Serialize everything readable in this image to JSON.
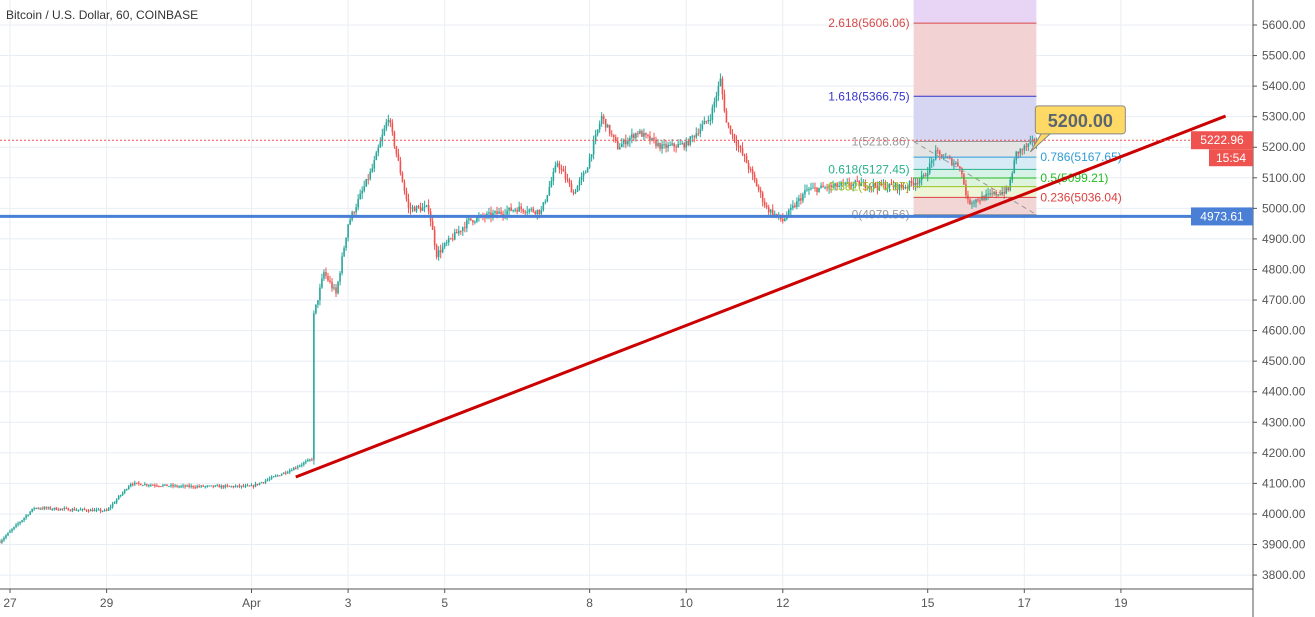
{
  "header": {
    "title": "Bitcoin / U.S. Dollar, 60, COINBASE"
  },
  "colors": {
    "up": "#26a69a",
    "down": "#ef5350",
    "trendline": "#cc0000",
    "support": "#4a7fd6",
    "price_label": "#ef5350",
    "callout": "#ffd966"
  },
  "chart_data": {
    "type": "candlestick",
    "title": "Bitcoin / U.S. Dollar, 60, COINBASE",
    "interval": "60",
    "x_ticks": [
      {
        "label": "27",
        "date": "Mar 27 00:00"
      },
      {
        "label": "29",
        "date": "Mar 29 00:00"
      },
      {
        "label": "Apr",
        "date": "Apr 1 00:00"
      },
      {
        "label": "3",
        "date": "Apr 3 00:00"
      },
      {
        "label": "5",
        "date": "Apr 5 00:00"
      },
      {
        "label": "8",
        "date": "Apr 8 00:00"
      },
      {
        "label": "10",
        "date": "Apr 10 00:00"
      },
      {
        "label": "12",
        "date": "Apr 12 00:00"
      },
      {
        "label": "15",
        "date": "Apr 15 00:00"
      },
      {
        "label": "17",
        "date": "Apr 17 00:00"
      },
      {
        "label": "19",
        "date": "Apr 19 00:00"
      }
    ],
    "y_ticks": [
      "3800.00",
      "3900.00",
      "4000.00",
      "4100.00",
      "4200.00",
      "4300.00",
      "4400.00",
      "4500.00",
      "4600.00",
      "4700.00",
      "4800.00",
      "4900.00",
      "5000.00",
      "5100.00",
      "5200.00",
      "5300.00",
      "5400.00",
      "5500.00",
      "5600.00"
    ],
    "ylim": [
      3750,
      5680
    ],
    "xlim": [
      "Mar 26 19:00",
      "Apr 22 22:00"
    ],
    "grid": true,
    "price_path": [
      [
        "Mar 26 19:00",
        3910
      ],
      [
        "Mar 27 12:00",
        4020
      ],
      [
        "Mar 29 00:00",
        4010
      ],
      [
        "Mar 29 12:00",
        4100
      ],
      [
        "Mar 30 12:00",
        4090
      ],
      [
        "Apr 1 00:00",
        4090
      ],
      [
        "Apr 1 18:00",
        4140
      ],
      [
        "Apr 2 06:00",
        4180
      ],
      [
        "Apr 2 07:00",
        4650
      ],
      [
        "Apr 2 12:00",
        4790
      ],
      [
        "Apr 2 18:00",
        4720
      ],
      [
        "Apr 3 00:00",
        4950
      ],
      [
        "Apr 3 12:00",
        5130
      ],
      [
        "Apr 3 20:00",
        5300
      ],
      [
        "Apr 4 06:00",
        5000
      ],
      [
        "Apr 4 16:00",
        5000
      ],
      [
        "Apr 4 20:00",
        4850
      ],
      [
        "Apr 5 12:00",
        4960
      ],
      [
        "Apr 6 12:00",
        5000
      ],
      [
        "Apr 7 00:00",
        4990
      ],
      [
        "Apr 7 08:00",
        5150
      ],
      [
        "Apr 7 16:00",
        5050
      ],
      [
        "Apr 7 22:00",
        5120
      ],
      [
        "Apr 8 06:00",
        5300
      ],
      [
        "Apr 8 14:00",
        5200
      ],
      [
        "Apr 9 00:00",
        5250
      ],
      [
        "Apr 9 12:00",
        5200
      ],
      [
        "Apr 10 00:00",
        5210
      ],
      [
        "Apr 10 12:00",
        5300
      ],
      [
        "Apr 10 17:00",
        5420
      ],
      [
        "Apr 10 20:00",
        5280
      ],
      [
        "Apr 11 06:00",
        5150
      ],
      [
        "Apr 11 16:00",
        5000
      ],
      [
        "Apr 12 00:00",
        4960
      ],
      [
        "Apr 12 12:00",
        5060
      ],
      [
        "Apr 13 12:00",
        5080
      ],
      [
        "Apr 14 12:00",
        5070
      ],
      [
        "Apr 14 22:00",
        5100
      ],
      [
        "Apr 15 04:00",
        5180
      ],
      [
        "Apr 15 16:00",
        5140
      ],
      [
        "Apr 15 20:00",
        5020
      ],
      [
        "Apr 16 06:00",
        5040
      ],
      [
        "Apr 16 16:00",
        5060
      ],
      [
        "Apr 16 20:00",
        5180
      ],
      [
        "Apr 17 06:00",
        5222.96
      ]
    ],
    "last_price": "5222.96",
    "countdown": "15:54",
    "support_level": {
      "price": 4973.61,
      "label": "4973.61"
    },
    "trendline": {
      "from": [
        "Apr 1 22:00",
        4121
      ],
      "to": [
        "Apr 21 04:00",
        5302
      ]
    },
    "callout": {
      "label": "5200.00",
      "date": "Apr 17 03:00",
      "price": 5185
    },
    "fibonacci": {
      "from": "Apr 14 17:00",
      "to": "Apr 17 06:00",
      "levels": [
        {
          "label": "2.618(5606.06)",
          "ratio": 2.618,
          "price": 5606.06,
          "color": "#d94848",
          "zone": "#f2d2d2"
        },
        {
          "label": "1.618(5366.75)",
          "ratio": 1.618,
          "price": 5366.75,
          "color": "#3535c8",
          "zone": "#d6d6f2"
        },
        {
          "label": "1(5218.86)",
          "ratio": 1,
          "price": 5218.86,
          "color": "#9a9a9a",
          "zone": "#e4e4e4"
        },
        {
          "label": "0.786(5167.65)",
          "ratio": 0.786,
          "price": 5167.65,
          "color": "#2e9bd6",
          "zone": "#d6ebf6"
        },
        {
          "label": "0.618(5127.45)",
          "ratio": 0.618,
          "price": 5127.45,
          "color": "#26b08a",
          "zone": "#d6f1e6"
        },
        {
          "label": "0.5(5099.21)",
          "ratio": 0.5,
          "price": 5099.21,
          "color": "#22bb22",
          "zone": "#dcf4dc"
        },
        {
          "label": "0.382(5070.97)",
          "ratio": 0.382,
          "price": 5070.97,
          "color": "#99c422",
          "zone": "#eef4d6"
        },
        {
          "label": "0.236(5036.04)",
          "ratio": 0.236,
          "price": 5036.04,
          "color": "#dd4040",
          "zone": "#f2d6d6"
        },
        {
          "label": "0(4979.56)",
          "ratio": 0,
          "price": 4979.56,
          "color": "#9a9a9a",
          "zone": null
        }
      ],
      "top_zone": "#e8d4f4"
    }
  }
}
